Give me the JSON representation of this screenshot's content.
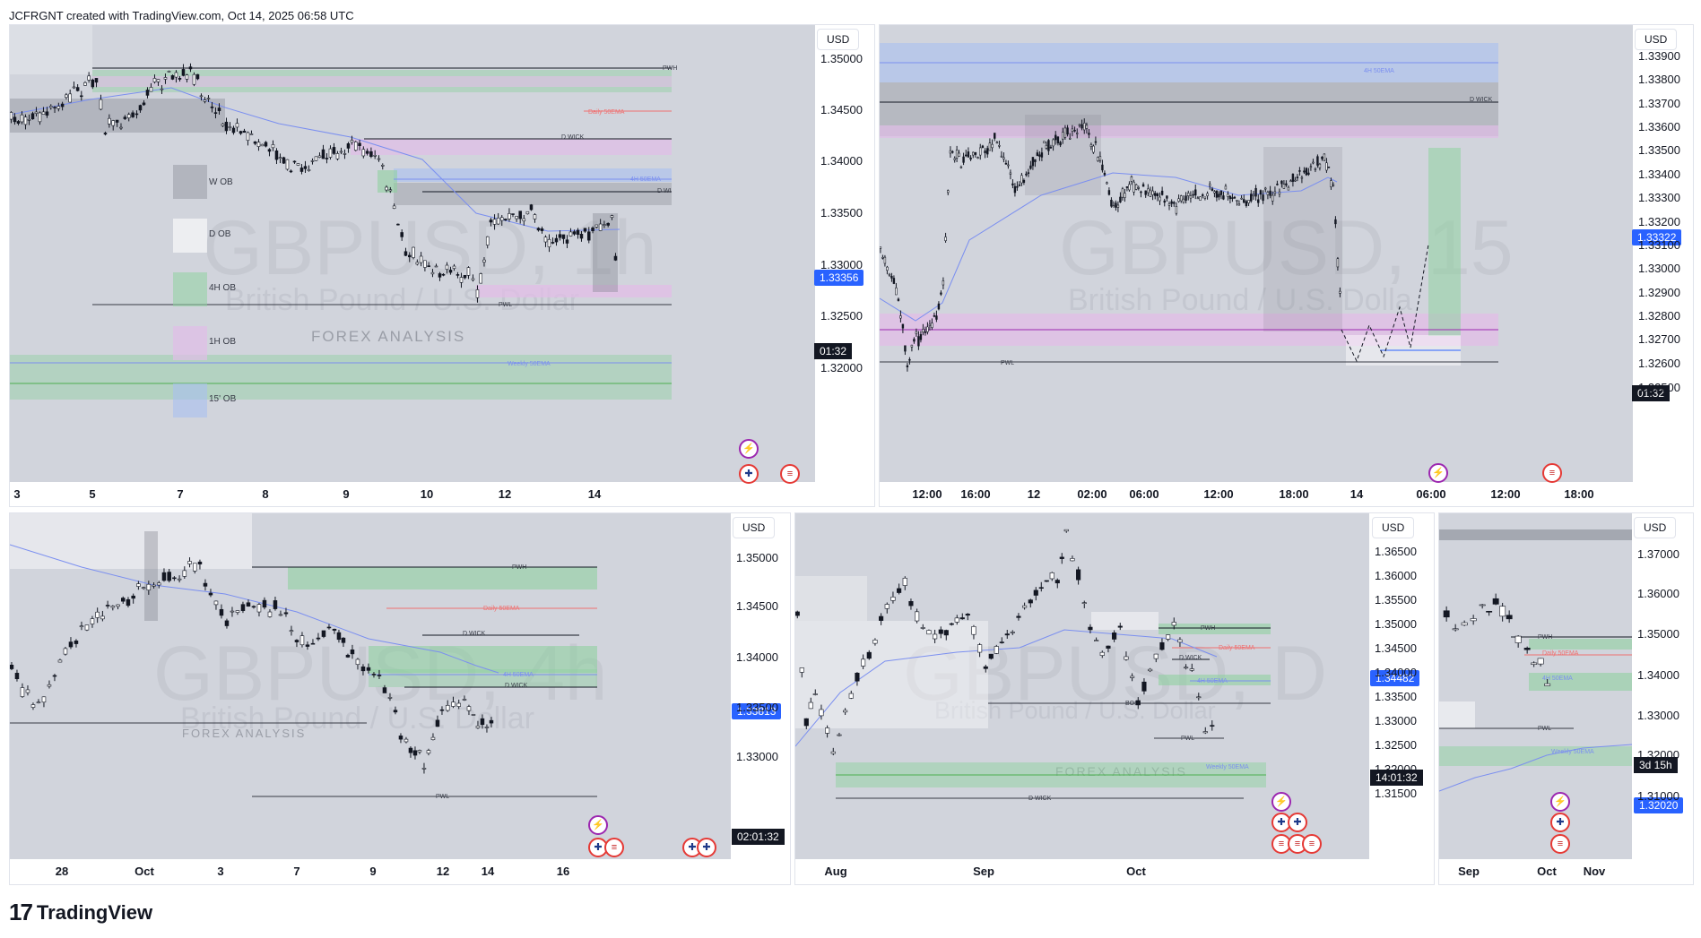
{
  "header": {
    "text": "JCFRGNT created with TradingView.com, Oct 14, 2025 06:58 UTC"
  },
  "footer": {
    "brand": "TradingView",
    "logo_icon": "tradingview-logo-icon"
  },
  "colors": {
    "plot_bg": "#d1d4dc",
    "candle": "#131722",
    "daily_ema": "#f07070",
    "ema_line": "#7b8ff0",
    "ob_green": "#8fd1a0",
    "ob_purple": "#e1bee7",
    "ob_blue": "#a8c0f0",
    "ob_gray": "#9598a1",
    "price_blue": "#2962ff",
    "timer_black": "#131722"
  },
  "panels": [
    {
      "id": "p1",
      "currency": "USD",
      "watermark_symbol": "GBPUSD, 1h",
      "watermark_desc": "British Pound / U.S. Dollar",
      "watermark_logo": "FOREX ANALYSIS",
      "price_ticks": [
        "1.35000",
        "1.34500",
        "1.34000",
        "1.33500",
        "1.33000",
        "1.32500",
        "1.32000"
      ],
      "time_ticks": [
        "3",
        "5",
        "7",
        "8",
        "9",
        "10",
        "12",
        "14"
      ],
      "current_price": "1.33356",
      "timer": "01:32",
      "legend": [
        "W OB",
        "D OB",
        "4H OB",
        "1H OB",
        "15' OB"
      ],
      "labels": {
        "pwh": "PWH",
        "daily_ema": "Daily 50EMA",
        "d_wick": "D WICK",
        "h4_ema": "4H 50EMA",
        "d_wick2": "D WI",
        "pwl": "PWL",
        "weekly_ema": "Weekly 50EMA"
      }
    },
    {
      "id": "p2",
      "currency": "USD",
      "watermark_symbol": "GBPUSD, 15",
      "watermark_desc": "British Pound / U.S. Dolla",
      "price_ticks": [
        "1.33900",
        "1.33800",
        "1.33700",
        "1.33600",
        "1.33500",
        "1.33400",
        "1.33300",
        "1.33200",
        "1.33100",
        "1.33000",
        "1.32900",
        "1.32800",
        "1.32700",
        "1.32600",
        "1.32500"
      ],
      "time_ticks": [
        "12:00",
        "16:00",
        "12",
        "02:00",
        "06:00",
        "12:00",
        "18:00",
        "14",
        "06:00",
        "12:00",
        "18:00"
      ],
      "current_price": "1.33322",
      "timer": "01:32",
      "labels": {
        "h4_ema": "4H 50EMA",
        "d_wick": "D WICK",
        "pwl": "PWL"
      }
    },
    {
      "id": "p3",
      "currency": "USD",
      "watermark_symbol": "GBPUSD, 4h",
      "watermark_desc": "British Pound / U.S. Dollar",
      "watermark_logo": "FOREX ANALYSIS",
      "price_ticks": [
        "1.35000",
        "1.34500",
        "1.34000",
        "1.33500",
        "1.33000"
      ],
      "time_ticks": [
        "28",
        "Oct",
        "3",
        "7",
        "9",
        "12",
        "14",
        "16"
      ],
      "current_price": "1.33813",
      "timer": "02:01:32",
      "labels": {
        "pwh": "PWH",
        "daily_ema": "Daily 50EMA",
        "d_wick": "D WICK",
        "h4_ema": "4H 50EMA",
        "d_wick2": "D WICK",
        "pwl": "PWL"
      }
    },
    {
      "id": "p4",
      "currency": "USD",
      "watermark_symbol": "GBPUSD, D",
      "watermark_desc": "British Pound / U.S. Dollar",
      "watermark_logo": "FOREX ANALYSIS",
      "price_ticks": [
        "1.36500",
        "1.36000",
        "1.35500",
        "1.35000",
        "1.34500",
        "1.34000",
        "1.33500",
        "1.33000",
        "1.32500",
        "1.32000",
        "1.31500"
      ],
      "time_ticks": [
        "Aug",
        "Sep",
        "Oct"
      ],
      "current_price": "1.34482",
      "timer": "14:01:32",
      "labels": {
        "pwh": "PWH",
        "daily_ema": "Daily 50EMA",
        "d_wick": "D WICK",
        "h4_ema": "4H 50EMA",
        "bos": "BOS",
        "pwl": "PWL",
        "weekly_ema": "Weekly 50EMA",
        "d_wick_low": "D WICK"
      }
    },
    {
      "id": "p5",
      "currency": "USD",
      "watermark_symbol": "GBPUSD, W",
      "price_ticks": [
        "1.37000",
        "1.36000",
        "1.35000",
        "1.34000",
        "1.33000",
        "1.32000",
        "1.31000"
      ],
      "time_ticks": [
        "Sep",
        "Oct",
        "Nov"
      ],
      "current_price": "1.32020",
      "timer": "3d 15h",
      "labels": {
        "pwh": "PWH",
        "daily_ema": "Daily 50EMA",
        "h4_ema": "4H 50EMA",
        "pwl": "PWL",
        "weekly_ema": "Weekly 50EMA"
      }
    }
  ]
}
